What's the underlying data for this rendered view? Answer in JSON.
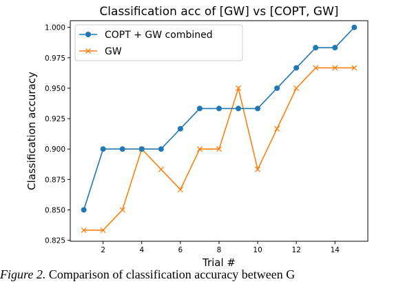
{
  "chart_data": {
    "type": "line",
    "title": "Classification acc of [GW] vs [COPT, GW]",
    "xlabel": "Trial #",
    "ylabel": "Classification accuracy",
    "xlim": [
      0.3,
      15.7
    ],
    "ylim": [
      0.8242,
      1.0055
    ],
    "xticks": [
      2,
      4,
      6,
      8,
      10,
      12,
      14
    ],
    "yticks": [
      0.825,
      0.85,
      0.875,
      0.9,
      0.925,
      0.95,
      0.975,
      1.0
    ],
    "ytick_labels": [
      "0.825",
      "0.850",
      "0.875",
      "0.900",
      "0.925",
      "0.950",
      "0.975",
      "1.000"
    ],
    "legend_position": "upper-left",
    "grid": false,
    "x": [
      1,
      2,
      3,
      4,
      5,
      6,
      7,
      8,
      9,
      10,
      11,
      12,
      13,
      14,
      15
    ],
    "series": [
      {
        "name": "COPT + GW combined",
        "color": "#1f77b4",
        "marker": "circle",
        "values": [
          0.85,
          0.9,
          0.9,
          0.9,
          0.9,
          0.9167,
          0.9333,
          0.9333,
          0.9333,
          0.9333,
          0.95,
          0.9667,
          0.9833,
          0.9833,
          1.0
        ]
      },
      {
        "name": "GW",
        "color": "#ff7f0e",
        "marker": "x",
        "values": [
          0.8333,
          0.8333,
          0.85,
          0.9,
          0.8833,
          0.8667,
          0.9,
          0.9,
          0.95,
          0.8833,
          0.9167,
          0.95,
          0.9667,
          0.9667,
          0.9667
        ]
      }
    ]
  },
  "caption": {
    "figure_label": "Figure 2.",
    "text": " Comparison of classification accuracy between G"
  }
}
